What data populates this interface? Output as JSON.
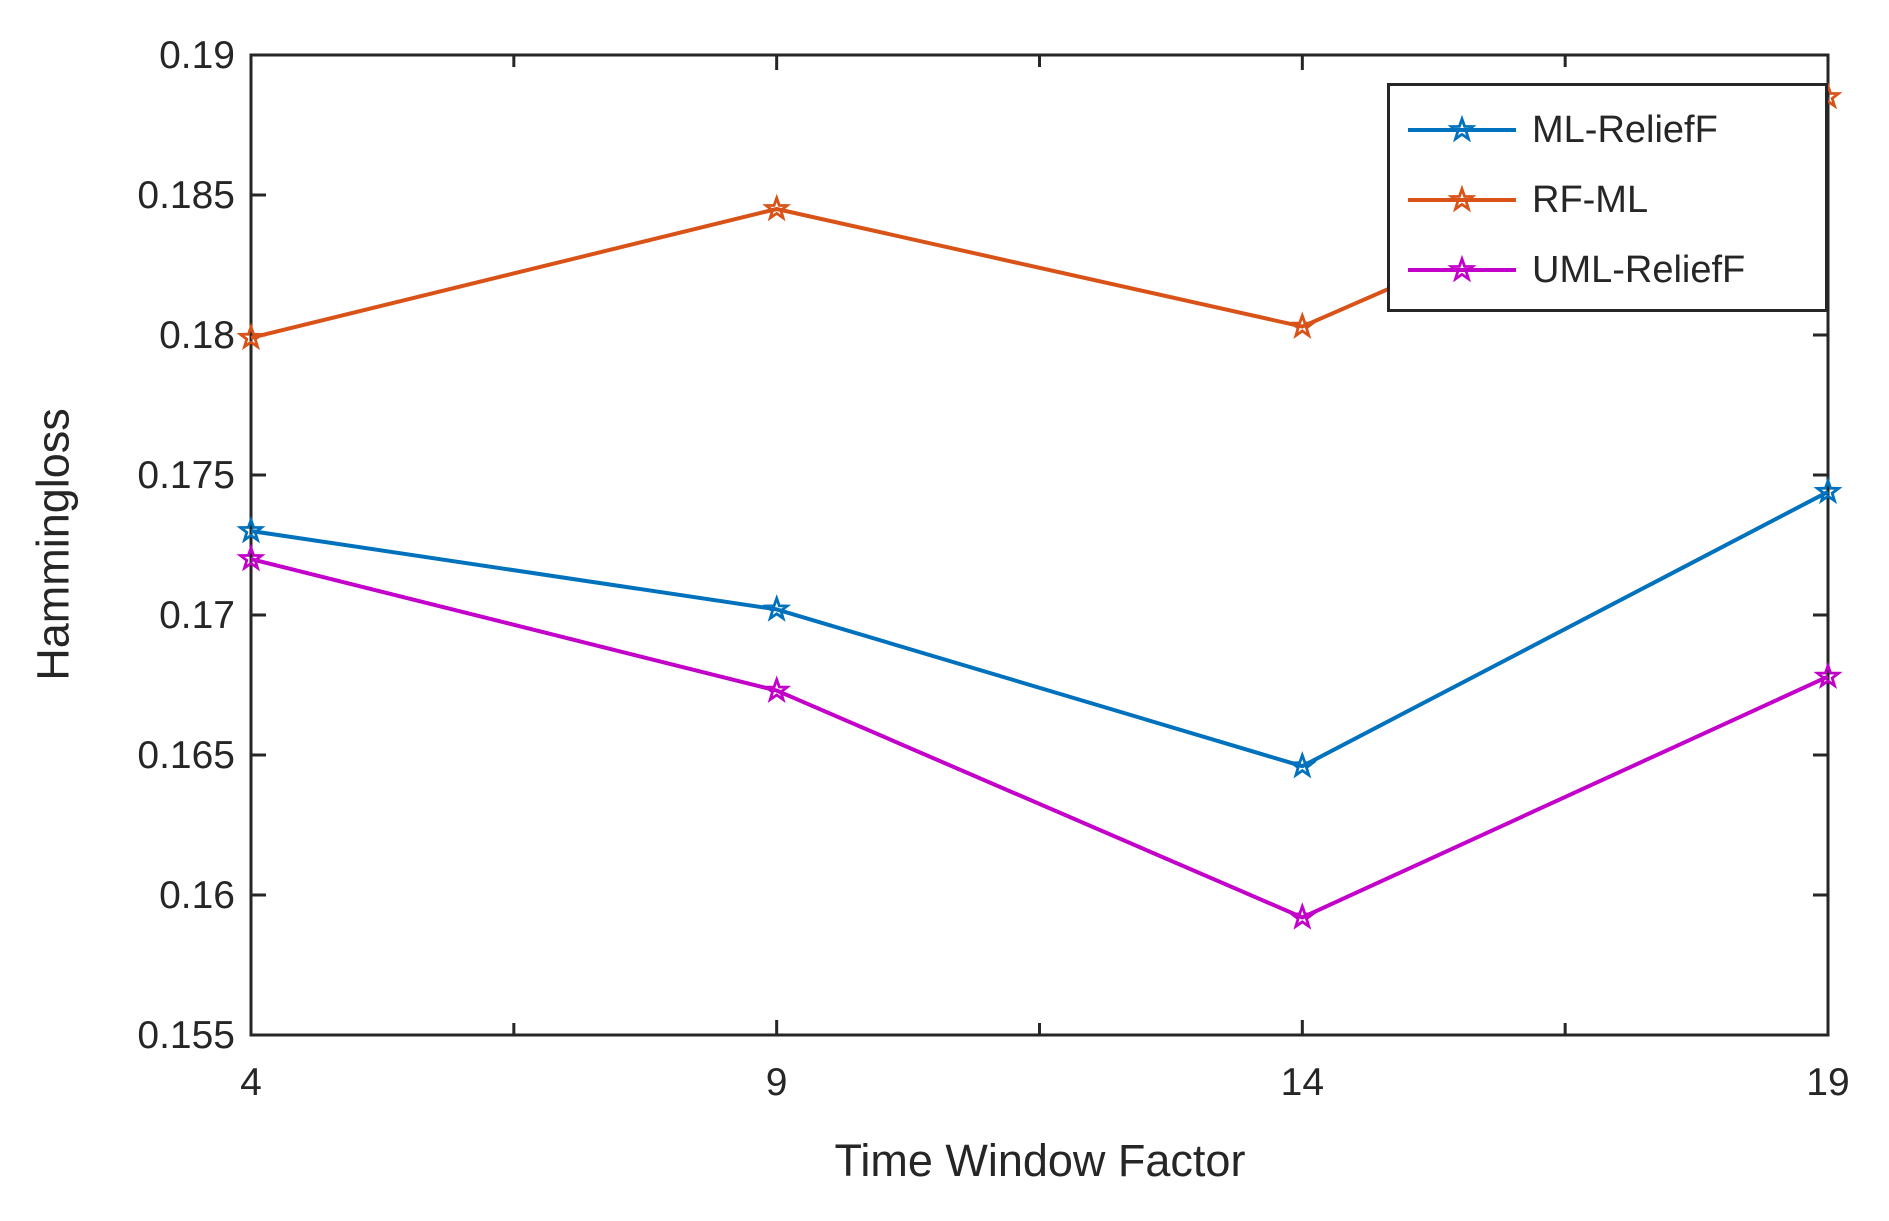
{
  "figure": {
    "background": "#ffffff",
    "axis_color": "#262626",
    "text_color": "#262626"
  },
  "chart_data": {
    "type": "line",
    "x": [
      4,
      9,
      14,
      19
    ],
    "series": [
      {
        "name": "ML-ReliefF",
        "color": "#0072BD",
        "marker": "pentagram",
        "values": [
          0.173,
          0.1702,
          0.1646,
          0.1744
        ]
      },
      {
        "name": "RF-ML",
        "color": "#D95319",
        "marker": "pentagram",
        "values": [
          0.1799,
          0.1845,
          0.1803,
          0.1885
        ]
      },
      {
        "name": "UML-ReliefF",
        "color": "#C300C9",
        "marker": "pentagram",
        "values": [
          0.172,
          0.1673,
          0.1592,
          0.1678
        ]
      }
    ],
    "title": "",
    "xlabel": "Time Window Factor",
    "ylabel": "Hammingloss",
    "xlim": [
      4,
      19
    ],
    "ylim": [
      0.155,
      0.19
    ],
    "xticks": [
      4,
      9,
      14,
      19
    ],
    "xtick_labels": [
      "4",
      "9",
      "14",
      "19"
    ],
    "x_minor_ticks": [
      6.5,
      11.5,
      16.5
    ],
    "yticks": [
      0.155,
      0.16,
      0.165,
      0.17,
      0.175,
      0.18,
      0.185,
      0.19
    ],
    "ytick_labels": [
      "0.155",
      "0.16",
      "0.165",
      "0.17",
      "0.175",
      "0.18",
      "0.185",
      "0.19"
    ],
    "grid": false,
    "legend_position": "top-right-inside",
    "legend_box": true
  },
  "legend": {
    "items": [
      "ML-ReliefF",
      "RF-ML",
      "UML-ReliefF"
    ]
  }
}
